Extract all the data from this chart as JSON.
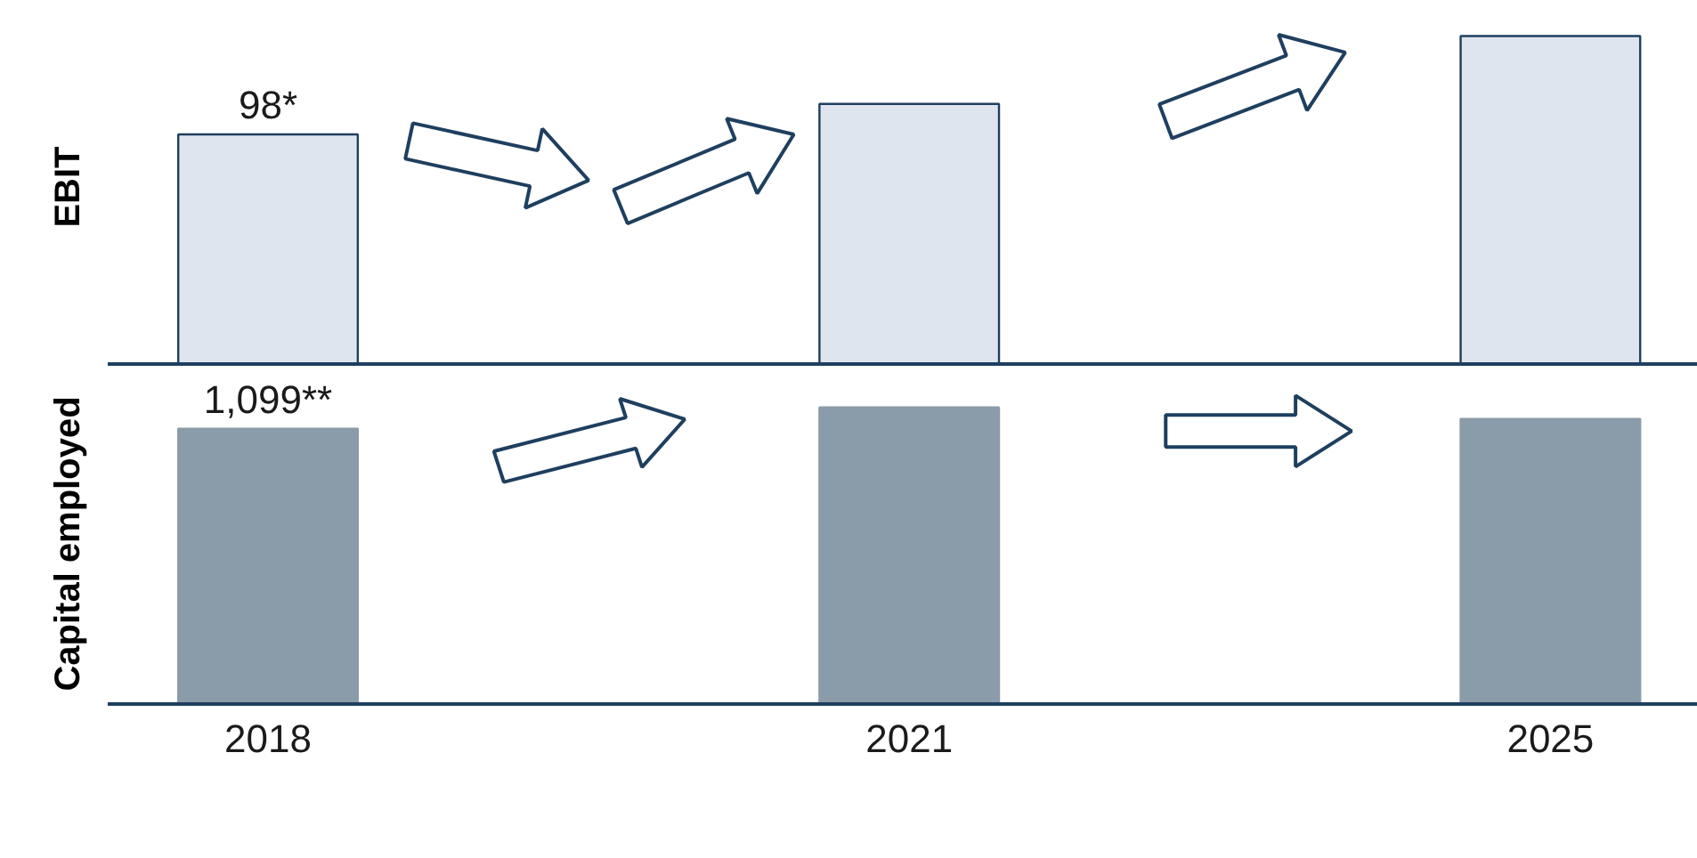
{
  "chart_data": [
    {
      "type": "bar",
      "ylabel": "EBIT",
      "categories": [
        "2018",
        "2021",
        "2025"
      ],
      "tick_labels": false,
      "color": "#dfe5ef",
      "values": [
        98,
        111,
        140
      ],
      "value_labels": [
        "98*",
        null,
        null
      ]
    },
    {
      "type": "bar",
      "ylabel": "Capital employed",
      "categories": [
        "2018",
        "2021",
        "2025"
      ],
      "tick_labels": "x",
      "color": "#8a9ba9",
      "values": [
        1099,
        1184,
        1138
      ],
      "value_labels": [
        "1,099**",
        null,
        null
      ]
    }
  ]
}
